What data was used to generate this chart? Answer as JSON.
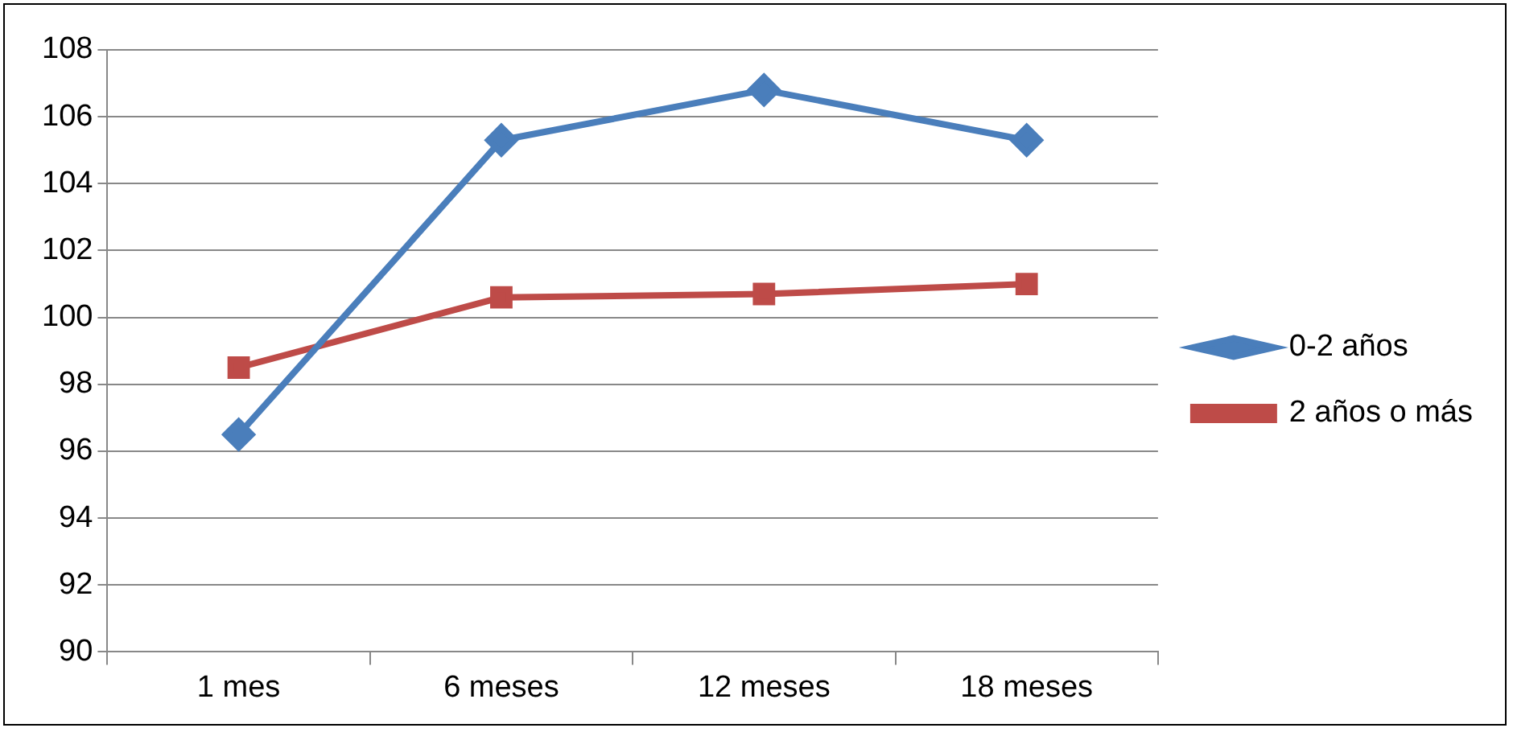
{
  "chart_data": {
    "type": "line",
    "categories": [
      "1 mes",
      "6 meses",
      "12 meses",
      "18 meses"
    ],
    "series": [
      {
        "name": "0-2 años",
        "color": "#4a7ebb",
        "marker": "diamond",
        "values": [
          96.5,
          105.3,
          106.8,
          105.3
        ]
      },
      {
        "name": "2 años o más",
        "color": "#be4b48",
        "marker": "square",
        "values": [
          98.5,
          100.6,
          100.7,
          101.0
        ]
      }
    ],
    "ylim": [
      90,
      108
    ],
    "yticks": [
      90,
      92,
      94,
      96,
      98,
      100,
      102,
      104,
      106,
      108
    ],
    "grid": "y",
    "legend": "right",
    "line_style": "solid"
  }
}
